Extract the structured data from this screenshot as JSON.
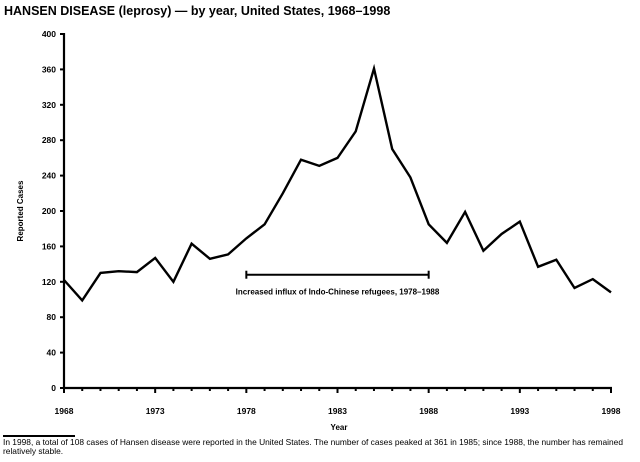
{
  "title": "HANSEN DISEASE (leprosy) — by year, United States, 1968–1998",
  "footnote": "In 1998, a total of 108 cases of Hansen disease were reported in the United States. The number of cases peaked at 361 in 1985; since 1988, the number has remained relatively stable.",
  "chart_data": {
    "type": "line",
    "title": "HANSEN DISEASE (leprosy) — by year, United States, 1968–1998",
    "xlabel": "Year",
    "ylabel": "Reported Cases",
    "xlim": [
      1968,
      1998
    ],
    "ylim": [
      0,
      400
    ],
    "x_ticks": [
      "1968",
      "1973",
      "1978",
      "1983",
      "1988",
      "1993",
      "1998"
    ],
    "y_ticks": [
      "0",
      "40",
      "80",
      "120",
      "160",
      "200",
      "240",
      "280",
      "320",
      "360",
      "400"
    ],
    "grid": false,
    "series": [
      {
        "name": "Reported Cases",
        "color": "#000000",
        "x": [
          1968,
          1969,
          1970,
          1971,
          1972,
          1973,
          1974,
          1975,
          1976,
          1977,
          1978,
          1979,
          1980,
          1981,
          1982,
          1983,
          1984,
          1985,
          1986,
          1987,
          1988,
          1989,
          1990,
          1991,
          1992,
          1993,
          1994,
          1995,
          1996,
          1997,
          1998
        ],
        "values": [
          122,
          99,
          130,
          132,
          131,
          147,
          120,
          163,
          146,
          151,
          169,
          185,
          220,
          258,
          251,
          260,
          290,
          361,
          270,
          238,
          185,
          164,
          199,
          155,
          174,
          188,
          137,
          145,
          113,
          123,
          108
        ]
      }
    ],
    "annotations": [
      {
        "text": "Increased influx of Indo-Chinese refugees, 1978–1988",
        "x_start": 1978,
        "x_end": 1988,
        "y": 128
      }
    ]
  }
}
